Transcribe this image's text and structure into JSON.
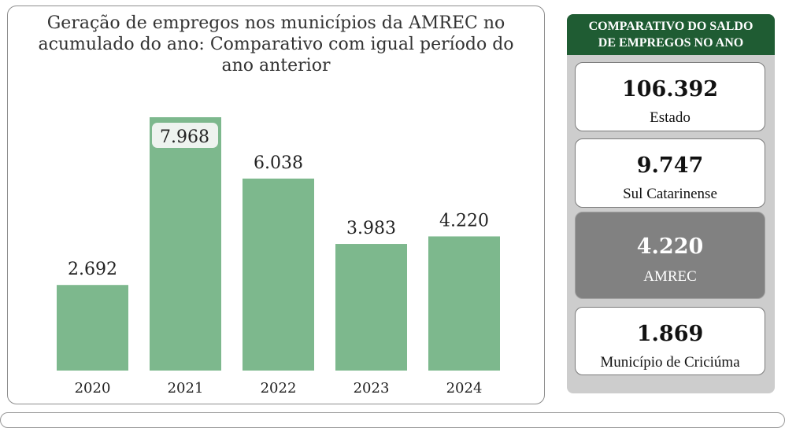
{
  "chart_data": {
    "type": "bar",
    "title": "Geração de empregos nos municípios da AMREC no acumulado do ano: Comparativo com igual período do ano anterior",
    "categories": [
      "2020",
      "2021",
      "2022",
      "2023",
      "2024"
    ],
    "values": [
      2692,
      7968,
      6038,
      3983,
      4220
    ],
    "value_labels": [
      "2.692",
      "7.968",
      "6.038",
      "3.983",
      "4.220"
    ],
    "highlighted_label_index": 1,
    "ylim": [
      0,
      7968
    ],
    "grid": false,
    "bar_color": "#7db88d"
  },
  "sidebar": {
    "header_line1": "COMPARATIVO DO SALDO",
    "header_line2": "DE EMPREGOS NO ANO",
    "header_color": "#1f5c33",
    "cards": [
      {
        "value": "106.392",
        "label": "Estado"
      },
      {
        "value": "9.747",
        "label": "Sul Catarinense"
      },
      {
        "value": "4.220",
        "label": "AMREC"
      },
      {
        "value": "1.869",
        "label": "Município de Criciúma"
      }
    ]
  }
}
